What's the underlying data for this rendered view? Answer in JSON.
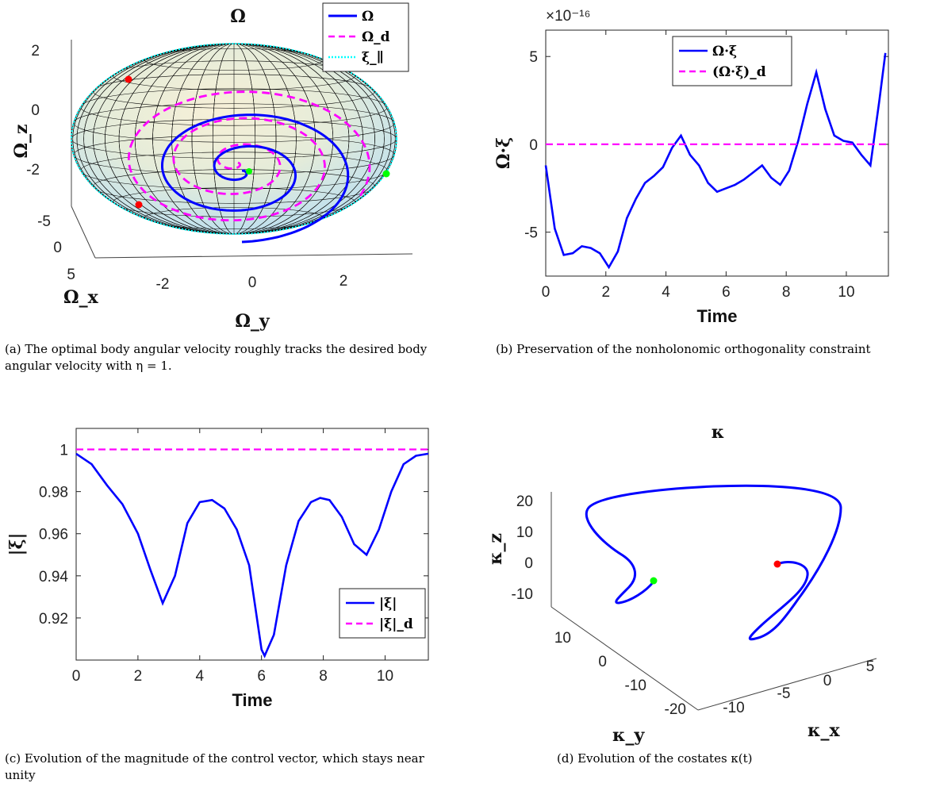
{
  "chart_data": [
    {
      "id": "a",
      "type": "line",
      "title": "Ω",
      "xlabel": "Ω_x",
      "ylabel": "Ω_y",
      "zlabel": "Ω_z",
      "x_ticks": [
        "5",
        "0",
        "-5"
      ],
      "y_ticks": [
        "-2",
        "0",
        "2"
      ],
      "z_ticks": [
        "2",
        "0",
        "-2"
      ],
      "legend": [
        "Ω",
        "Ω_d",
        "ξ_∥"
      ],
      "legend_position": "top-right",
      "colors": {
        "omega": "#0000ff",
        "omega_d": "#ff00ff",
        "xi_par": "#00ffff",
        "start": "#ff0000",
        "end": "#00ff00"
      },
      "spiral_turns": 3,
      "caption": "(a) The optimal body angular velocity roughly tracks the desired body angular velocity with η = 1."
    },
    {
      "id": "b",
      "type": "line",
      "exponent_label": "×10⁻¹⁶",
      "xlabel": "Time",
      "ylabel": "Ω·ξ",
      "xlim": [
        0,
        11.4
      ],
      "ylim": [
        -7.5,
        6.5
      ],
      "x_ticks": [
        "0",
        "2",
        "4",
        "6",
        "8",
        "10"
      ],
      "y_ticks": [
        "5",
        "0",
        "-5"
      ],
      "legend_position": "top-center",
      "series": [
        {
          "name": "Ω·ξ",
          "color": "#0000ff",
          "x": [
            0,
            0.3,
            0.6,
            0.9,
            1.2,
            1.5,
            1.8,
            2.1,
            2.4,
            2.7,
            3.0,
            3.3,
            3.6,
            3.9,
            4.2,
            4.5,
            4.8,
            5.1,
            5.4,
            5.7,
            6.0,
            6.3,
            6.6,
            6.9,
            7.2,
            7.5,
            7.8,
            8.1,
            8.4,
            8.7,
            9.0,
            9.3,
            9.6,
            9.9,
            10.2,
            10.5,
            10.8,
            11.1,
            11.3
          ],
          "y": [
            -1.2,
            -4.8,
            -6.3,
            -6.2,
            -5.8,
            -5.9,
            -6.2,
            -7.0,
            -6.1,
            -4.2,
            -3.1,
            -2.2,
            -1.8,
            -1.3,
            -0.2,
            0.5,
            -0.6,
            -1.2,
            -2.2,
            -2.7,
            -2.5,
            -2.3,
            -2.0,
            -1.6,
            -1.2,
            -1.9,
            -2.3,
            -1.5,
            0.2,
            2.3,
            4.1,
            2.0,
            0.5,
            0.2,
            0.1,
            -0.6,
            -1.2,
            2.5,
            5.2
          ]
        },
        {
          "name": "(Ω·ξ)_d",
          "color": "#ff00ff",
          "x": [
            0,
            11.4
          ],
          "y": [
            0,
            0
          ]
        }
      ],
      "caption": "(b) Preservation of the nonholonomic orthogonality constraint"
    },
    {
      "id": "c",
      "type": "line",
      "xlabel": "Time",
      "ylabel": "|ξ|",
      "xlim": [
        0,
        11.4
      ],
      "ylim": [
        0.9,
        1.01
      ],
      "x_ticks": [
        "0",
        "2",
        "4",
        "6",
        "8",
        "10"
      ],
      "y_ticks": [
        "1",
        "0.98",
        "0.96",
        "0.94",
        "0.92"
      ],
      "legend_position": "bottom-right",
      "series": [
        {
          "name": "|ξ|",
          "color": "#0000ff",
          "x": [
            0,
            0.5,
            1.0,
            1.5,
            2.0,
            2.4,
            2.8,
            3.2,
            3.6,
            4.0,
            4.4,
            4.8,
            5.2,
            5.6,
            6.0,
            6.1,
            6.4,
            6.8,
            7.2,
            7.6,
            7.9,
            8.2,
            8.6,
            9.0,
            9.4,
            9.8,
            10.2,
            10.6,
            11.0,
            11.4
          ],
          "y": [
            0.998,
            0.993,
            0.983,
            0.974,
            0.96,
            0.943,
            0.927,
            0.94,
            0.965,
            0.975,
            0.976,
            0.972,
            0.962,
            0.945,
            0.905,
            0.902,
            0.912,
            0.945,
            0.966,
            0.975,
            0.977,
            0.976,
            0.968,
            0.955,
            0.95,
            0.962,
            0.98,
            0.993,
            0.997,
            0.998
          ]
        },
        {
          "name": "|ξ|_d",
          "color": "#ff00ff",
          "x": [
            0,
            11.4
          ],
          "y": [
            1,
            1
          ]
        }
      ],
      "caption": "(c) Evolution of the magnitude of the control vector, which stays near unity"
    },
    {
      "id": "d",
      "type": "line",
      "title": "κ",
      "xlabel": "κ_x",
      "ylabel": "κ_y",
      "zlabel": "κ_z",
      "x_ticks": [
        "-10",
        "-5",
        "0",
        "5"
      ],
      "y_ticks": [
        "10",
        "0",
        "-10",
        "-20"
      ],
      "z_ticks": [
        "20",
        "10",
        "0",
        "-10"
      ],
      "colors": {
        "trajectory": "#0000ff",
        "start": "#ff0000",
        "end": "#00ff00"
      },
      "caption": "(d) Evolution of the costates κ(t)"
    }
  ]
}
